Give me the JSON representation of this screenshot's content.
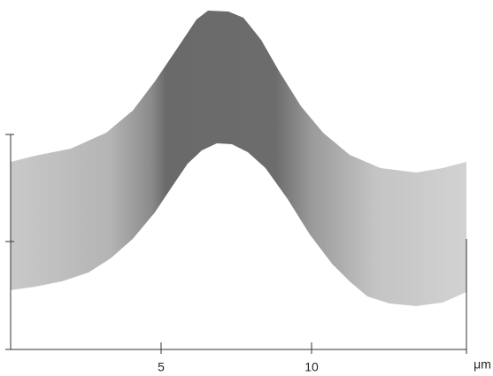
{
  "x_axis": {
    "tick_labels": [
      5,
      10
    ],
    "unit": "μm"
  }
}
